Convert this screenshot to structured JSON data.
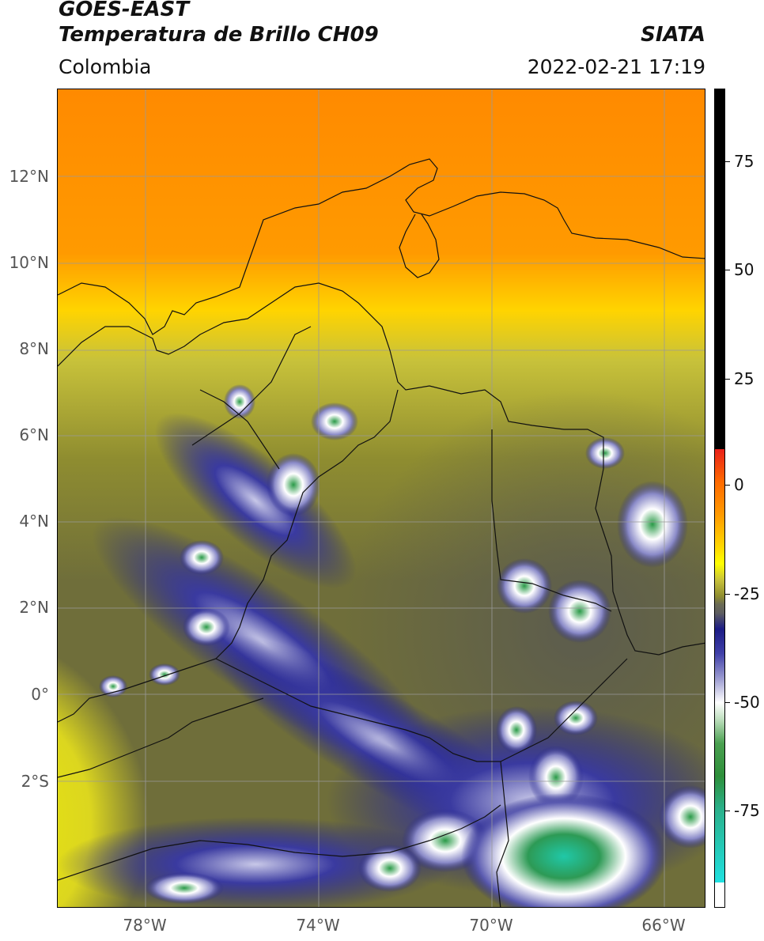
{
  "header": {
    "title_line1": "GOES-EAST",
    "title_line2": "Temperatura de Brillo CH09",
    "region": "Colombia",
    "source": "SIATA",
    "datetime": "2022-02-21 17:19"
  },
  "axes": {
    "lat_labels": [
      "12°N",
      "10°N",
      "8°N",
      "6°N",
      "4°N",
      "2°N",
      "0°",
      "2°S"
    ],
    "lon_labels": [
      "78°W",
      "74°W",
      "70°W",
      "66°W"
    ]
  },
  "colorbar": {
    "tick_labels": [
      "75",
      "50",
      "25",
      "0",
      "-25",
      "-50",
      "-75"
    ],
    "colors": {
      "black": "#000000",
      "red": "#e8201a",
      "orange": "#ff8c00",
      "yellow": "#ffff00",
      "olive": "#8a8a2a",
      "gray": "#5f5f5f",
      "navy": "#1c1c85",
      "white": "#ffffff",
      "green": "#2d8f3a",
      "cyan": "#20e0e0"
    }
  }
}
